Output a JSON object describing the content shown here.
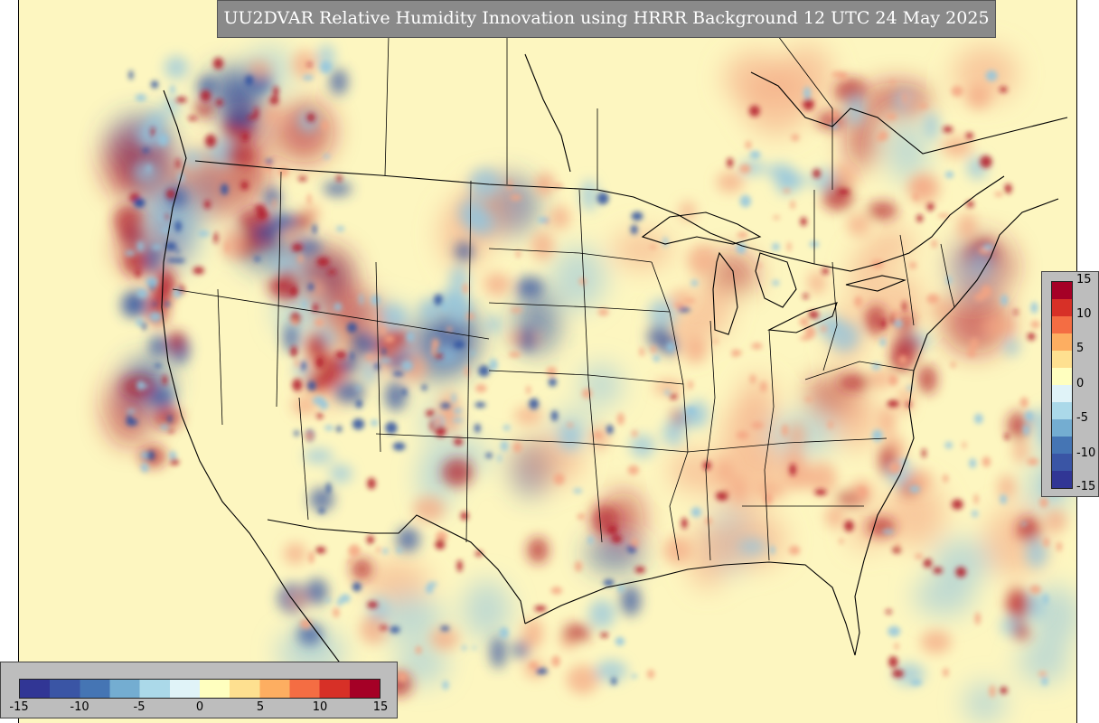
{
  "title": "UU2DVAR Relative Humidity Innovation using HRRR Background 12 UTC 24 May 2025",
  "colorbar": {
    "min": -15,
    "max": 15,
    "colors": [
      "#313695",
      "#3a55a5",
      "#4575b4",
      "#74add1",
      "#abd9e9",
      "#e0f3f8",
      "#ffffbf",
      "#fee090",
      "#fdae61",
      "#f46d43",
      "#d73027",
      "#a50026"
    ],
    "vertical_ticks": [
      "15",
      "10",
      "5",
      "0",
      "-5",
      "-10",
      "-15"
    ],
    "horizontal_ticks": [
      "-15",
      "-10",
      "-5",
      "0",
      "5",
      "10",
      "15"
    ]
  },
  "colors": {
    "background_field": "#fdf6c0",
    "positive_strong": "#b2182b",
    "positive_weak": "#f4a582",
    "negative_strong": "#2c4fa0",
    "negative_weak": "#92c5de",
    "boundary_lines": "#000000"
  }
}
